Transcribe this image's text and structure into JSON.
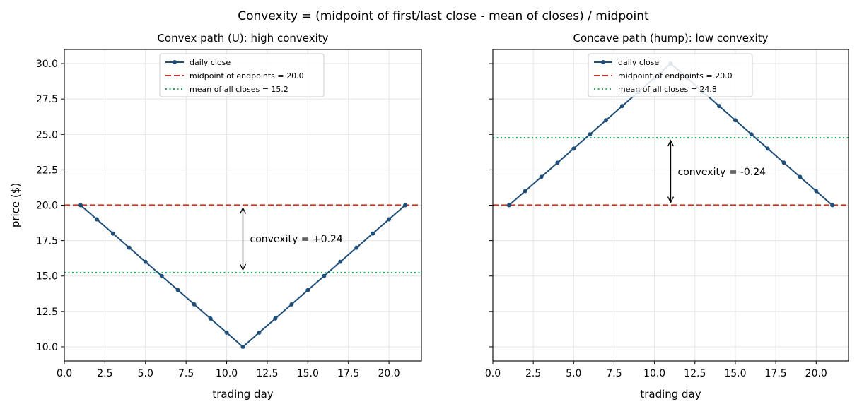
{
  "suptitle": "Convexity = (midpoint of first/last close - mean of closes) / midpoint",
  "colors": {
    "series": "#1f4e79",
    "midpoint": "#c0392b",
    "mean": "#27ae60",
    "grid": "#e5e5e5"
  },
  "legend_labels": {
    "series": "daily close",
    "midpoint": "midpoint of endpoints = 20.0"
  },
  "chart_data": [
    {
      "type": "line",
      "title": "Convex path (U): high convexity",
      "xlabel": "trading day",
      "ylabel": "price ($)",
      "xlim": [
        0,
        22
      ],
      "ylim": [
        9.0,
        31.0
      ],
      "xticks": [
        0,
        2.5,
        5,
        7.5,
        10,
        12.5,
        15,
        17.5,
        20
      ],
      "xtick_labels": [
        "0.0",
        "2.5",
        "5.0",
        "7.5",
        "10.0",
        "12.5",
        "15.0",
        "17.5",
        "20.0"
      ],
      "yticks": [
        10,
        12.5,
        15,
        17.5,
        20,
        22.5,
        25,
        27.5,
        30
      ],
      "ytick_labels": [
        "10.0",
        "12.5",
        "15.0",
        "17.5",
        "20.0",
        "22.5",
        "25.0",
        "27.5",
        "30.0"
      ],
      "grid": true,
      "legend": "upper-center",
      "x": [
        1,
        2,
        3,
        4,
        5,
        6,
        7,
        8,
        9,
        10,
        11,
        12,
        13,
        14,
        15,
        16,
        17,
        18,
        19,
        20,
        21
      ],
      "series": [
        {
          "name": "daily close",
          "values": [
            20,
            19,
            18,
            17,
            16,
            15,
            14,
            13,
            12,
            11,
            10,
            11,
            12,
            13,
            14,
            15,
            16,
            17,
            18,
            19,
            20
          ]
        }
      ],
      "midpoint": 20.0,
      "mean": 15.24,
      "mean_legend": "mean of all closes = 15.2",
      "annotation": {
        "text": "convexity = +0.24",
        "x": 11
      }
    },
    {
      "type": "line",
      "title": "Concave path (hump): low convexity",
      "xlabel": "trading day",
      "ylabel": "",
      "xlim": [
        0,
        22
      ],
      "ylim": [
        9.0,
        31.0
      ],
      "xticks": [
        0,
        2.5,
        5,
        7.5,
        10,
        12.5,
        15,
        17.5,
        20
      ],
      "xtick_labels": [
        "0.0",
        "2.5",
        "5.0",
        "7.5",
        "10.0",
        "12.5",
        "15.0",
        "17.5",
        "20.0"
      ],
      "yticks": [
        10,
        12.5,
        15,
        17.5,
        20,
        22.5,
        25,
        27.5,
        30
      ],
      "ytick_labels": [
        "",
        "",
        "",
        "",
        "",
        "",
        "",
        "",
        ""
      ],
      "grid": true,
      "legend": "upper-center",
      "x": [
        1,
        2,
        3,
        4,
        5,
        6,
        7,
        8,
        9,
        10,
        11,
        12,
        13,
        14,
        15,
        16,
        17,
        18,
        19,
        20,
        21
      ],
      "series": [
        {
          "name": "daily close",
          "values": [
            20,
            21,
            22,
            23,
            24,
            25,
            26,
            27,
            28,
            29,
            30,
            29,
            28,
            27,
            26,
            25,
            24,
            23,
            22,
            21,
            20
          ]
        }
      ],
      "midpoint": 20.0,
      "mean": 24.76,
      "mean_legend": "mean of all closes = 24.8",
      "annotation": {
        "text": "convexity = -0.24",
        "x": 11
      }
    }
  ]
}
